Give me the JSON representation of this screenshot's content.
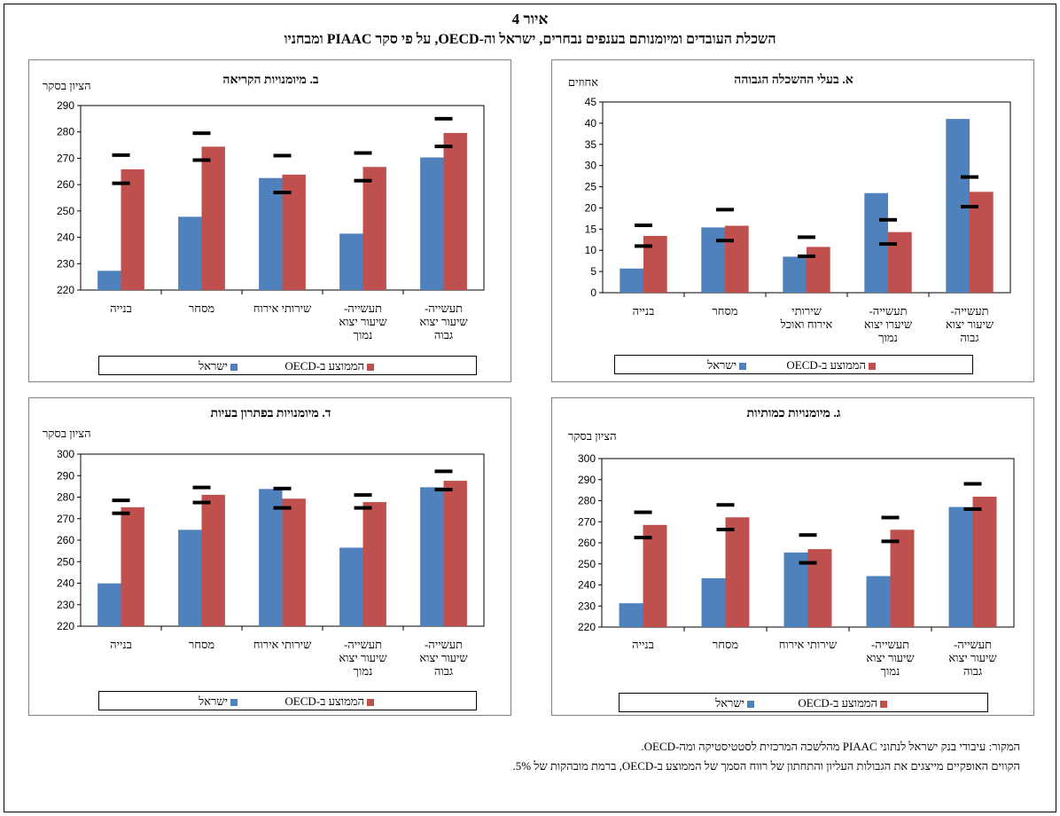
{
  "figure": {
    "number": "איור 4",
    "title": "השכלת העובדים ומיומנותם בענפים נבחרים, ישראל וה-OECD, על פי סקר PIAAC ומבחניו"
  },
  "legend": {
    "israel": "ישראל",
    "oecd": "הממוצע ב-OECD"
  },
  "colors": {
    "israel": "#4f81bd",
    "oecd": "#c0504d",
    "band": "#000000"
  },
  "notes": {
    "source": "המקור: עיבודי בנק ישראל לנתוני PIAAC מהלשכה המרכזית לסטטיסטיקה ומה-OECD.",
    "explanation": "הקווים האופקיים מייצגים את הגבולות העליון והתחתון של רווח הסמך של הממוצע ב-OECD, ברמת מובהקות של 5%."
  },
  "chart_data": [
    {
      "id": "a",
      "type": "bar",
      "title": "א. בעלי ההשכלה הגבוהה",
      "ylabel": "אחוזים",
      "ylim": [
        0,
        45
      ],
      "yticks": [
        0,
        5,
        10,
        15,
        20,
        25,
        30,
        35,
        40,
        45
      ],
      "categories": [
        [
          "תעשייה-",
          "שיעור יצוא",
          "גבוה"
        ],
        [
          "תעשייה-",
          "שיערו יצוא",
          "נמוך"
        ],
        [
          "שירותי",
          "אירוח ואוכל"
        ],
        [
          "מסחר"
        ],
        [
          "בנייה"
        ]
      ],
      "series": [
        {
          "name": "ישראל",
          "values": [
            41,
            23.5,
            8.5,
            15.4,
            5.7
          ]
        },
        {
          "name": "הממוצע ב-OECD",
          "values": [
            23.8,
            14.3,
            10.8,
            15.8,
            13.4
          ]
        }
      ],
      "ci_upper": [
        27.3,
        17.2,
        13.1,
        19.6,
        15.9
      ],
      "ci_lower": [
        20.3,
        11.5,
        8.6,
        12.3,
        11.0
      ]
    },
    {
      "id": "b",
      "type": "bar",
      "title": "ב. מיומנויות הקריאה",
      "ylabel": "הציון בסקר",
      "ylim": [
        220,
        290
      ],
      "yticks": [
        220,
        230,
        240,
        250,
        260,
        270,
        280,
        290
      ],
      "categories": [
        [
          "תעשייה-",
          "שיעור יצוא",
          "גבוה"
        ],
        [
          "תעשייה-",
          "שיעור יצוא",
          "נמוך"
        ],
        [
          "שירותי אירוח"
        ],
        [
          "מסחר"
        ],
        [
          "בנייה"
        ]
      ],
      "series": [
        {
          "name": "ישראל",
          "values": [
            270.3,
            241.4,
            262.5,
            247.8,
            227.3
          ]
        },
        {
          "name": "הממוצע ב-OECD",
          "values": [
            279.6,
            266.7,
            263.8,
            274.4,
            265.8
          ]
        }
      ],
      "ci_upper": [
        285,
        272,
        271,
        279.5,
        271.2
      ],
      "ci_lower": [
        274.5,
        261.5,
        257,
        269.3,
        260.5
      ]
    },
    {
      "id": "g",
      "type": "bar",
      "title": "ג. מיומנויות כמותיות",
      "ylabel": "הציון בסקר",
      "ylim": [
        220,
        300
      ],
      "yticks": [
        220,
        230,
        240,
        250,
        260,
        270,
        280,
        290,
        300
      ],
      "categories": [
        [
          "תעשייה-",
          "שיעור יצוא",
          "גבוה"
        ],
        [
          "תעשייה-",
          "שיעור יצוא",
          "נמוך"
        ],
        [
          "שירותי אירוח"
        ],
        [
          "מסחר"
        ],
        [
          "בנייה"
        ]
      ],
      "series": [
        {
          "name": "ישראל",
          "values": [
            277,
            244.2,
            255.4,
            243.2,
            231.3
          ]
        },
        {
          "name": "הממוצע ב-OECD",
          "values": [
            281.9,
            266.2,
            257,
            272.1,
            268.5
          ]
        }
      ],
      "ci_upper": [
        288,
        272,
        263.7,
        278,
        274.5
      ],
      "ci_lower": [
        276,
        260.7,
        250.5,
        266.3,
        262.5
      ]
    },
    {
      "id": "d",
      "type": "bar",
      "title": "ד. מיומנויות בפתרון בעיות",
      "ylabel": "הציון בסקר",
      "ylim": [
        220,
        300
      ],
      "yticks": [
        220,
        230,
        240,
        250,
        260,
        270,
        280,
        290,
        300
      ],
      "categories": [
        [
          "תעשייה-",
          "שיעור יצוא",
          "גבוה"
        ],
        [
          "תעשייה-",
          "שיעור יצוא",
          "נמוך"
        ],
        [
          "שירותי אירוח"
        ],
        [
          "מסחר"
        ],
        [
          "בנייה"
        ]
      ],
      "series": [
        {
          "name": "ישראל",
          "values": [
            284.6,
            256.5,
            283.8,
            264.8,
            239.9
          ]
        },
        {
          "name": "הממוצע ב-OECD",
          "values": [
            287.6,
            277.7,
            279.3,
            281.1,
            275.3
          ]
        }
      ],
      "ci_upper": [
        292,
        281,
        284,
        284.5,
        278.5
      ],
      "ci_lower": [
        283.5,
        275,
        275,
        277.5,
        272.5
      ]
    }
  ]
}
